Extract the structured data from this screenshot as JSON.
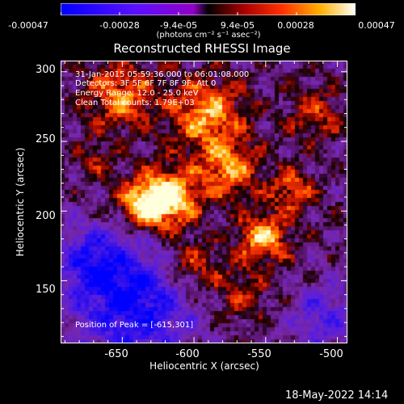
{
  "colorbar": {
    "ticks": [
      "-0.00047",
      "-0.00028",
      "-9.4e-05",
      "9.4e-05",
      "0.00028",
      "0.00047"
    ],
    "units": "(photons cm⁻² s⁻¹ asec⁻²)"
  },
  "plot": {
    "title": "Reconstructed RHESSI Image",
    "info": [
      "31-Jan-2015 05:59:36.000 to 06:01:08.000",
      "Detectors: 3F 5F 6F 7F 8F 9F, Att 0",
      "Energy Range: 12.0 - 25.0 keV",
      "Clean     Total counts: 1.79E+03"
    ],
    "peak_text": "Position of Peak = [-615,301]",
    "x_label": "Heliocentric X (arcsec)",
    "y_label": "Heliocentric Y (arcsec)",
    "x_ticks": [
      "-650",
      "-600",
      "-550",
      "-500"
    ],
    "y_ticks": [
      "300",
      "250",
      "200",
      "150"
    ],
    "x_range": [
      -693,
      -493
    ],
    "y_range": [
      105,
      308
    ]
  },
  "footer": {
    "timestamp": "18-May-2022 14:14"
  }
}
